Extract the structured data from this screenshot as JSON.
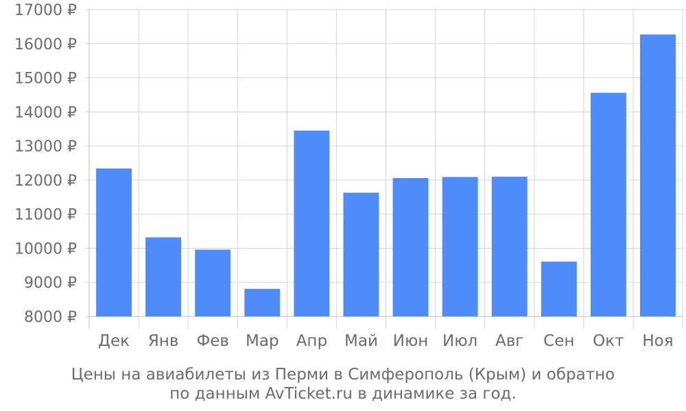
{
  "chart_data": {
    "type": "bar",
    "categories": [
      "Дек",
      "Янв",
      "Фев",
      "Мар",
      "Апр",
      "Май",
      "Июн",
      "Июл",
      "Авг",
      "Сен",
      "Окт",
      "Ноя"
    ],
    "values": [
      12340,
      10320,
      9960,
      8810,
      13450,
      11630,
      12060,
      12090,
      12100,
      9610,
      14560,
      16270
    ],
    "ylim": [
      8000,
      17000
    ],
    "ytick_labels": [
      "8000 ₽",
      "9000 ₽",
      "10000 ₽",
      "11000 ₽",
      "12000 ₽",
      "13000 ₽",
      "14000 ₽",
      "15000 ₽",
      "16000 ₽",
      "17000 ₽"
    ],
    "bar_color": "#4f8bf9",
    "grid": true,
    "title": ""
  },
  "caption": {
    "line1": "Цены на авиабилеты из Перми в Симферополь (Крым) и обратно",
    "line2": "по данным AvTicket.ru в динамике за год."
  }
}
